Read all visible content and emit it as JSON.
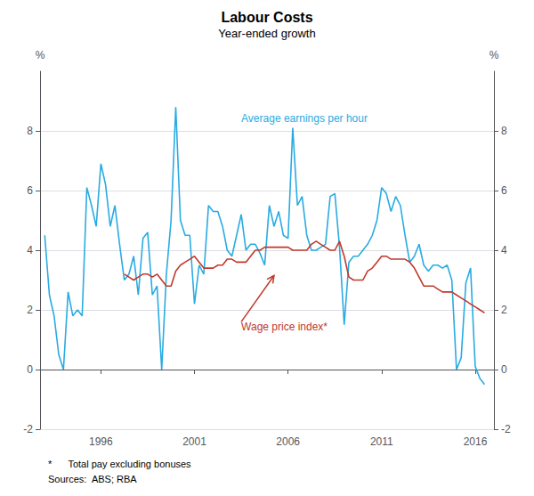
{
  "chart_data": {
    "type": "line",
    "title": "Labour Costs",
    "subtitle": "Year-ended growth",
    "ylabel": "%",
    "y2label": "%",
    "xlim": [
      1992.75,
      2017.0
    ],
    "xticks": [
      1996,
      2001,
      2006,
      2011,
      2016
    ],
    "ylim": [
      -2,
      10
    ],
    "yticks": [
      -2,
      0,
      2,
      4,
      6,
      8
    ],
    "y2lim": [
      -2,
      10
    ],
    "y2ticks": [
      -2,
      0,
      2,
      4,
      6,
      8
    ],
    "grid": true,
    "series": [
      {
        "color": "#29ABE2",
        "x": [
          1993.0,
          1993.25,
          1993.5,
          1993.75,
          1994.0,
          1994.25,
          1994.5,
          1994.75,
          1995.0,
          1995.25,
          1995.5,
          1995.75,
          1996.0,
          1996.25,
          1996.5,
          1996.75,
          1997.0,
          1997.25,
          1997.5,
          1997.75,
          1998.0,
          1998.25,
          1998.5,
          1998.75,
          1999.0,
          1999.25,
          1999.5,
          1999.75,
          2000.0,
          2000.25,
          2000.5,
          2000.75,
          2001.0,
          2001.25,
          2001.5,
          2001.75,
          2002.0,
          2002.25,
          2002.5,
          2002.75,
          2003.0,
          2003.25,
          2003.5,
          2003.75,
          2004.0,
          2004.25,
          2004.5,
          2004.75,
          2005.0,
          2005.25,
          2005.5,
          2005.75,
          2006.0,
          2006.25,
          2006.5,
          2006.75,
          2007.0,
          2007.25,
          2007.5,
          2007.75,
          2008.0,
          2008.25,
          2008.5,
          2008.75,
          2009.0,
          2009.25,
          2009.5,
          2009.75,
          2010.0,
          2010.25,
          2010.5,
          2010.75,
          2011.0,
          2011.25,
          2011.5,
          2011.75,
          2012.0,
          2012.25,
          2012.5,
          2012.75,
          2013.0,
          2013.25,
          2013.5,
          2013.75,
          2014.0,
          2014.25,
          2014.5,
          2014.75,
          2015.0,
          2015.25,
          2015.5,
          2015.75,
          2016.0,
          2016.25,
          2016.5
        ],
        "values": [
          4.5,
          2.5,
          1.8,
          0.5,
          0.0,
          2.6,
          1.8,
          2.0,
          1.8,
          6.1,
          5.5,
          4.8,
          6.9,
          6.2,
          4.8,
          5.5,
          4.2,
          3.0,
          3.2,
          3.8,
          2.5,
          4.4,
          4.6,
          2.5,
          2.8,
          0.0,
          3.2,
          5.0,
          8.8,
          5.0,
          4.5,
          4.5,
          2.2,
          3.5,
          3.2,
          5.5,
          5.3,
          5.3,
          4.8,
          4.0,
          3.8,
          4.5,
          5.2,
          4.0,
          4.2,
          4.2,
          3.9,
          3.5,
          5.5,
          4.8,
          5.3,
          4.5,
          4.4,
          8.1,
          5.5,
          5.8,
          4.5,
          4.0,
          4.0,
          4.1,
          4.2,
          5.8,
          5.9,
          4.1,
          1.5,
          3.6,
          3.8,
          3.8,
          4.0,
          4.2,
          4.5,
          5.0,
          6.1,
          5.9,
          5.3,
          5.8,
          5.5,
          4.5,
          3.6,
          3.8,
          4.2,
          3.5,
          3.3,
          3.5,
          3.5,
          3.4,
          3.5,
          3.0,
          0.0,
          0.4,
          2.9,
          3.4,
          0.1,
          -0.3,
          -0.5
        ]
      },
      {
        "color": "#C0392B",
        "x": [
          1997.25,
          1997.5,
          1997.75,
          1998.0,
          1998.25,
          1998.5,
          1998.75,
          1999.0,
          1999.25,
          1999.5,
          1999.75,
          2000.0,
          2000.25,
          2000.5,
          2000.75,
          2001.0,
          2001.25,
          2001.5,
          2001.75,
          2002.0,
          2002.25,
          2002.5,
          2002.75,
          2003.0,
          2003.25,
          2003.5,
          2003.75,
          2004.0,
          2004.25,
          2004.5,
          2004.75,
          2005.0,
          2005.25,
          2005.5,
          2005.75,
          2006.0,
          2006.25,
          2006.5,
          2006.75,
          2007.0,
          2007.25,
          2007.5,
          2007.75,
          2008.0,
          2008.25,
          2008.5,
          2008.75,
          2009.0,
          2009.25,
          2009.5,
          2009.75,
          2010.0,
          2010.25,
          2010.5,
          2010.75,
          2011.0,
          2011.25,
          2011.5,
          2011.75,
          2012.0,
          2012.25,
          2012.5,
          2012.75,
          2013.0,
          2013.25,
          2013.5,
          2013.75,
          2014.0,
          2014.25,
          2014.5,
          2014.75,
          2015.0,
          2015.25,
          2015.5,
          2015.75,
          2016.0,
          2016.25,
          2016.5
        ],
        "values": [
          3.2,
          3.1,
          3.0,
          3.1,
          3.2,
          3.2,
          3.1,
          3.2,
          3.0,
          2.8,
          2.8,
          3.3,
          3.5,
          3.6,
          3.7,
          3.8,
          3.6,
          3.4,
          3.4,
          3.4,
          3.5,
          3.5,
          3.7,
          3.7,
          3.6,
          3.6,
          3.6,
          3.8,
          4.0,
          4.0,
          4.1,
          4.1,
          4.1,
          4.1,
          4.1,
          4.1,
          4.0,
          4.0,
          4.0,
          4.0,
          4.2,
          4.3,
          4.2,
          4.1,
          4.0,
          4.0,
          4.3,
          3.8,
          3.1,
          3.0,
          3.0,
          3.0,
          3.3,
          3.4,
          3.6,
          3.8,
          3.8,
          3.7,
          3.7,
          3.7,
          3.7,
          3.6,
          3.4,
          3.1,
          2.8,
          2.8,
          2.8,
          2.7,
          2.6,
          2.6,
          2.6,
          2.5,
          2.4,
          2.3,
          2.2,
          2.1,
          2.0,
          1.9
        ]
      }
    ],
    "annotations": [
      {
        "text": "Average earnings per hour",
        "x": 2003.5,
        "y": 8.6,
        "color": "#29ABE2"
      },
      {
        "text": "Wage price index*",
        "x": 2003.5,
        "y": 1.6,
        "arrow_x": 2005.25,
        "arrow_y": 3.15,
        "color": "#C0392B"
      }
    ],
    "footnotes": [
      "*      Total pay excluding bonuses",
      "Sources:  ABS; RBA"
    ]
  }
}
